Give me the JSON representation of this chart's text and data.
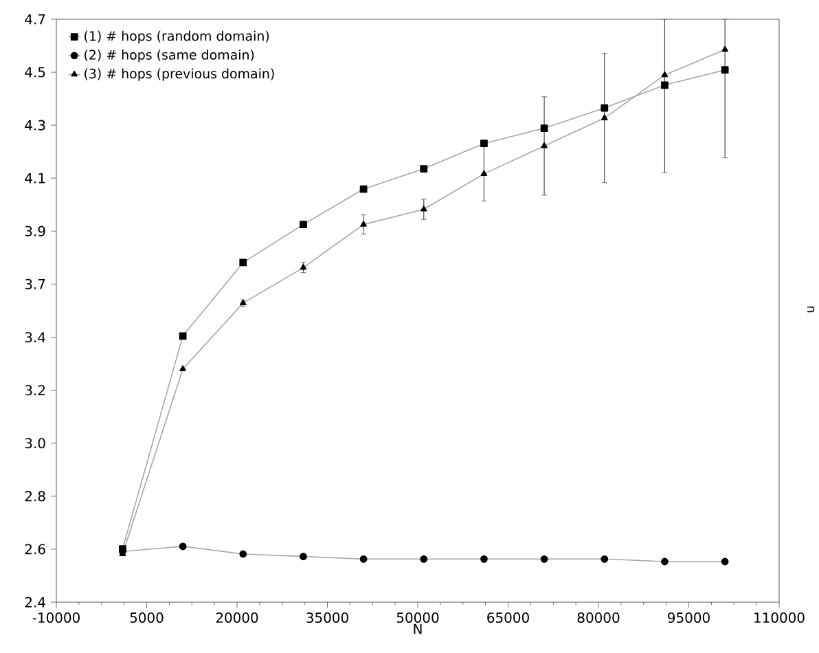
{
  "chart_data": {
    "type": "line",
    "xlabel": "N",
    "y2label": "u",
    "legend": "top left",
    "grid": false,
    "x": [
      1000,
      11000,
      21000,
      31000,
      41000,
      51000,
      61000,
      71000,
      81000,
      91000,
      101000
    ],
    "xlim": [
      -10000,
      110000
    ],
    "xticks": [
      -10000,
      5000,
      20000,
      35000,
      50000,
      65000,
      80000,
      95000,
      110000
    ],
    "ylim": [
      2.4,
      4.7
    ],
    "yticks": [
      2.4,
      {
        "value": 2.609,
        "label": "2.6"
      },
      {
        "value": 2.818,
        "label": "2.8"
      },
      {
        "value": 3.027,
        "label": "3.0"
      },
      {
        "value": 3.236,
        "label": "3.2"
      },
      {
        "value": 3.445,
        "label": "3.4"
      },
      {
        "value": 3.655,
        "label": "3.7"
      },
      {
        "value": 3.864,
        "label": "3.9"
      },
      {
        "value": 4.073,
        "label": "4.1"
      },
      {
        "value": 4.282,
        "label": "4.3"
      },
      {
        "value": 4.491,
        "label": "4.5"
      },
      4.7
    ],
    "series": [
      {
        "name": "(1) # hops (random domain)",
        "color": "#000000",
        "marker": "square",
        "values": [
          2.61,
          3.45,
          3.74,
          3.89,
          4.03,
          4.11,
          4.21,
          4.27,
          4.35,
          4.44,
          4.5
        ]
      },
      {
        "name": "(2) # hops (same domain)",
        "color": "#000000",
        "marker": "circle",
        "values": [
          2.6,
          2.62,
          2.59,
          2.58,
          2.57,
          2.57,
          2.57,
          2.57,
          2.57,
          2.56,
          2.56
        ]
      },
      {
        "name": "(3) # hops (previous domain)",
        "color": "#000000",
        "marker": "triangle",
        "values": [
          2.59,
          3.32,
          3.58,
          3.72,
          3.89,
          3.95,
          4.09,
          4.2,
          4.31,
          4.48,
          4.58
        ],
        "errors": [
          null,
          null,
          0.013,
          0.02,
          0.038,
          0.04,
          0.107,
          0.194,
          0.255,
          [
            4.095,
            4.7
          ],
          [
            4.153,
            4.7
          ]
        ]
      }
    ]
  }
}
